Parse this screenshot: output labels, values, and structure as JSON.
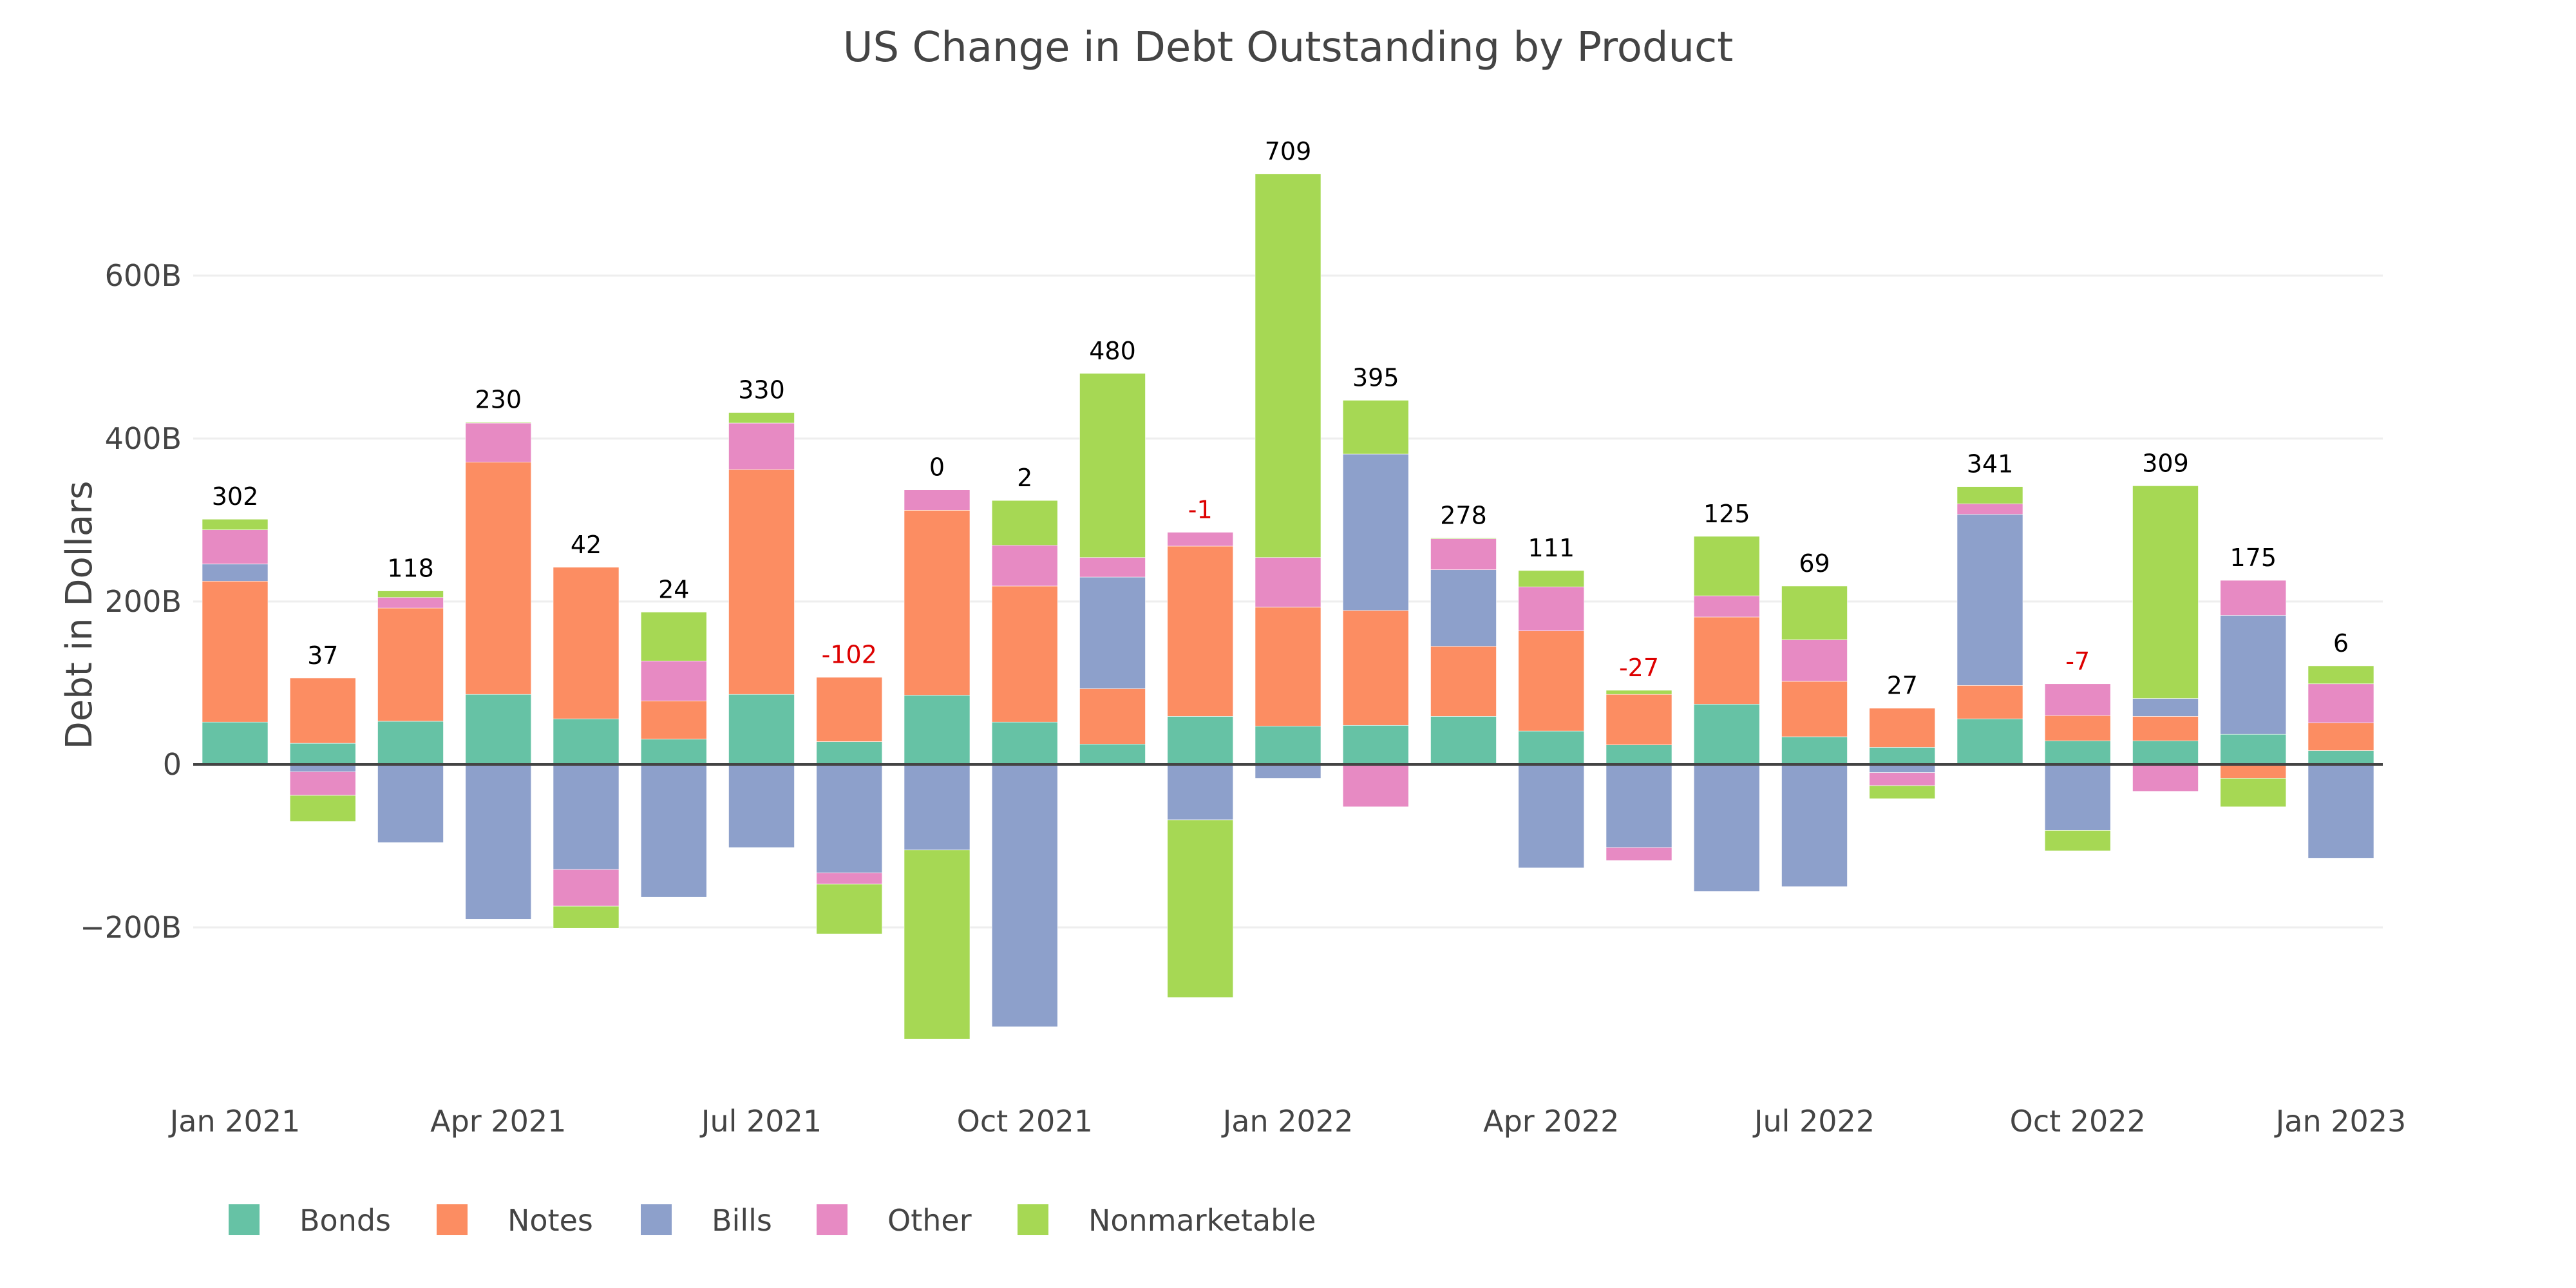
{
  "chart_data": {
    "type": "bar",
    "stacked": "relative",
    "title": "US Change in Debt Outstanding by Product",
    "xlabel": "",
    "ylabel": "Debt in Dollars",
    "units": "billions USD",
    "ylim": [
      -350,
      760
    ],
    "yticks": [
      -200,
      0,
      200,
      400,
      600
    ],
    "ytick_labels": [
      "−200B",
      "0",
      "200B",
      "400B",
      "600B"
    ],
    "grid": true,
    "categories": [
      "Jan 2021",
      "Feb 2021",
      "Mar 2021",
      "Apr 2021",
      "May 2021",
      "Jun 2021",
      "Jul 2021",
      "Aug 2021",
      "Sep 2021",
      "Oct 2021",
      "Nov 2021",
      "Dec 2021",
      "Jan 2022",
      "Feb 2022",
      "Mar 2022",
      "Apr 2022",
      "May 2022",
      "Jun 2022",
      "Jul 2022",
      "Aug 2022",
      "Sep 2022",
      "Oct 2022",
      "Nov 2022",
      "Dec 2022",
      "Jan 2023"
    ],
    "xtick_labels": [
      {
        "index": 0,
        "label": "Jan 2021"
      },
      {
        "index": 3,
        "label": "Apr 2021"
      },
      {
        "index": 6,
        "label": "Jul 2021"
      },
      {
        "index": 9,
        "label": "Oct 2021"
      },
      {
        "index": 12,
        "label": "Jan 2022"
      },
      {
        "index": 15,
        "label": "Apr 2022"
      },
      {
        "index": 18,
        "label": "Jul 2022"
      },
      {
        "index": 21,
        "label": "Oct 2022"
      },
      {
        "index": 24,
        "label": "Jan 2023"
      }
    ],
    "series": [
      {
        "name": "Bonds",
        "color": "#66c2a5",
        "values": [
          52,
          26,
          53,
          86,
          56,
          31,
          86,
          28,
          85,
          52,
          25,
          59,
          47,
          48,
          59,
          41,
          24,
          74,
          34,
          21,
          56,
          29,
          29,
          37,
          17
        ]
      },
      {
        "name": "Notes",
        "color": "#fc8d62",
        "values": [
          173,
          80,
          139,
          285,
          186,
          47,
          276,
          79,
          227,
          167,
          68,
          209,
          146,
          141,
          86,
          123,
          62,
          107,
          68,
          48,
          41,
          31,
          30,
          -17,
          34
        ]
      },
      {
        "name": "Bills",
        "color": "#8da0cb",
        "values": [
          21,
          -9,
          -96,
          -190,
          -129,
          -163,
          -102,
          -133,
          -105,
          -322,
          137,
          -68,
          -17,
          192,
          94,
          -127,
          -102,
          -156,
          -150,
          -10,
          210,
          -81,
          22,
          146,
          -115
        ]
      },
      {
        "name": "Other",
        "color": "#e78ac3",
        "values": [
          42,
          -29,
          13,
          48,
          -45,
          49,
          57,
          -14,
          25,
          50,
          24,
          17,
          61,
          -52,
          38,
          54,
          -16,
          26,
          51,
          -16,
          13,
          39,
          -33,
          43,
          48
        ]
      },
      {
        "name": "Nonmarketable",
        "color": "#a6d854",
        "values": [
          13,
          -32,
          8,
          1,
          -27,
          60,
          13,
          -61,
          -232,
          55,
          226,
          -218,
          471,
          66,
          1,
          20,
          5,
          73,
          66,
          -16,
          21,
          -25,
          261,
          -35,
          22
        ]
      }
    ],
    "totals": [
      "302",
      "37",
      "118",
      "230",
      "42",
      "24",
      "330",
      "-102",
      "0",
      "2",
      "480",
      "-1",
      "709",
      "395",
      "278",
      "111",
      "-27",
      "125",
      "69",
      "27",
      "341",
      "-7",
      "309",
      "175",
      "6"
    ],
    "total_colors": {
      "positive": "#000000",
      "negative": "#dd0000"
    },
    "legend": {
      "placement": "bottom-left",
      "orientation": "horizontal"
    }
  }
}
